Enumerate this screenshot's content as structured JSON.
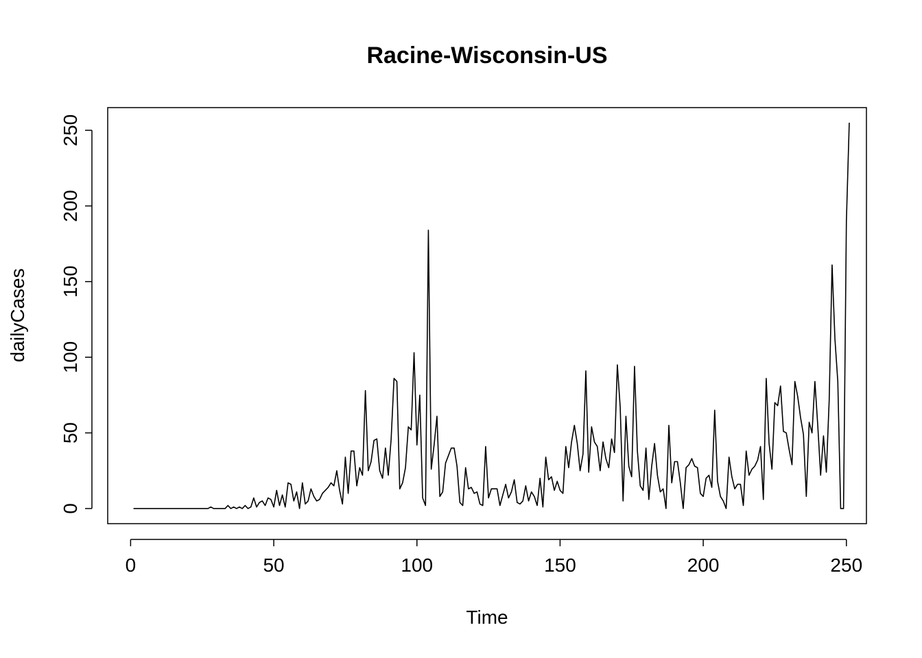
{
  "chart_data": {
    "type": "line",
    "title": "Racine-Wisconsin-US",
    "xlabel": "Time",
    "ylabel": "dailyCases",
    "xlim": [
      -8,
      257
    ],
    "ylim": [
      -10,
      265
    ],
    "xticks": [
      0,
      50,
      100,
      150,
      200,
      250
    ],
    "yticks": [
      0,
      50,
      100,
      150,
      200,
      250
    ],
    "grid": false,
    "legend": "none",
    "color": "#000000",
    "series": [
      {
        "x_start": 1,
        "values": [
          0,
          0,
          0,
          0,
          0,
          0,
          0,
          0,
          0,
          0,
          0,
          0,
          0,
          0,
          0,
          0,
          0,
          0,
          0,
          0,
          0,
          0,
          0,
          0,
          0,
          0,
          0,
          1,
          0,
          0,
          0,
          0,
          0,
          2,
          0,
          1,
          0,
          1,
          0,
          2,
          0,
          1,
          7,
          1,
          4,
          5,
          2,
          7,
          6,
          1,
          12,
          2,
          9,
          1,
          17,
          16,
          5,
          11,
          0,
          17,
          3,
          5,
          13,
          8,
          5,
          6,
          10,
          12,
          14,
          17,
          15,
          25,
          12,
          3,
          34,
          10,
          38,
          38,
          15,
          27,
          22,
          78,
          25,
          31,
          45,
          46,
          25,
          20,
          40,
          22,
          46,
          86,
          84,
          13,
          17,
          27,
          54,
          52,
          103,
          42,
          75,
          7,
          2,
          184,
          26,
          42,
          61,
          8,
          11,
          30,
          35,
          40,
          40,
          28,
          4,
          2,
          27,
          13,
          14,
          10,
          11,
          3,
          2,
          41,
          7,
          13,
          13,
          13,
          2,
          9,
          16,
          7,
          11,
          19,
          4,
          3,
          5,
          15,
          5,
          11,
          8,
          2,
          20,
          1,
          34,
          19,
          21,
          12,
          18,
          12,
          10,
          41,
          27,
          44,
          55,
          43,
          25,
          36,
          91,
          24,
          54,
          44,
          41,
          25,
          44,
          33,
          27,
          46,
          37,
          95,
          67,
          5,
          61,
          28,
          21,
          94,
          38,
          15,
          12,
          40,
          6,
          28,
          43,
          22,
          11,
          13,
          0,
          55,
          17,
          31,
          31,
          17,
          0,
          27,
          29,
          33,
          28,
          27,
          10,
          8,
          20,
          22,
          14,
          65,
          18,
          8,
          5,
          0,
          34,
          21,
          13,
          16,
          16,
          2,
          38,
          22,
          26,
          28,
          32,
          41,
          6,
          86,
          43,
          26,
          70,
          68,
          81,
          51,
          50,
          39,
          29,
          84,
          74,
          60,
          49,
          8,
          57,
          50,
          84,
          55,
          22,
          48,
          24,
          72,
          161,
          112,
          84,
          0,
          0,
          190,
          255
        ]
      }
    ]
  }
}
